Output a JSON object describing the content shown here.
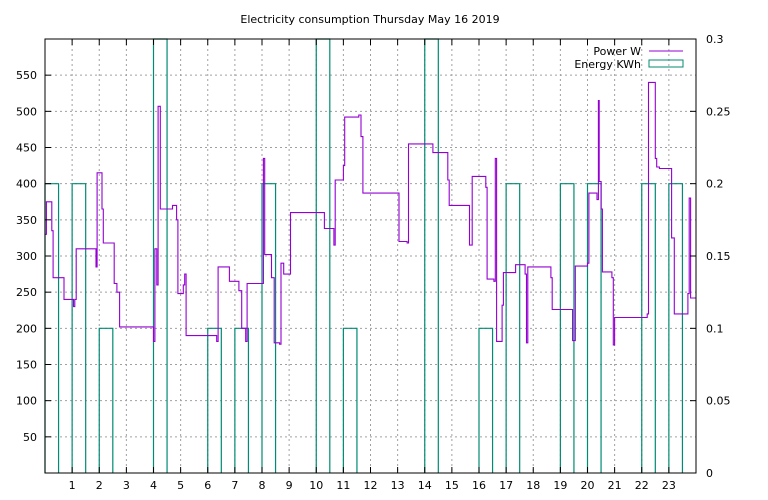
{
  "chart_data": {
    "type": "line",
    "title": "Electricity consumption Thursday May 16 2019",
    "xlabel": "",
    "ylabel": "",
    "x_ticks": [
      "1",
      "2",
      "3",
      "4",
      "5",
      "6",
      "7",
      "8",
      "9",
      "10",
      "11",
      "12",
      "13",
      "14",
      "15",
      "16",
      "17",
      "18",
      "19",
      "20",
      "21",
      "22",
      "23"
    ],
    "xlim": [
      0,
      24
    ],
    "y_ticks": [
      50,
      100,
      150,
      200,
      250,
      300,
      350,
      400,
      450,
      500,
      550
    ],
    "ylim": [
      0,
      600
    ],
    "y2_ticks": [
      "0",
      "0.05",
      "0.1",
      "0.15",
      "0.2",
      "0.25",
      "0.3"
    ],
    "y2lim": [
      0,
      0.3
    ],
    "grid": true,
    "legend_position": "top-right",
    "series": [
      {
        "name": "Power W",
        "axis": "left",
        "style": "steps",
        "color": "#9400d3",
        "points": [
          [
            0.0,
            330
          ],
          [
            0.05,
            375
          ],
          [
            0.25,
            335
          ],
          [
            0.3,
            270
          ],
          [
            0.65,
            270
          ],
          [
            0.7,
            240
          ],
          [
            1.0,
            240
          ],
          [
            1.05,
            230
          ],
          [
            1.1,
            240
          ],
          [
            1.15,
            310
          ],
          [
            1.85,
            310
          ],
          [
            1.88,
            285
          ],
          [
            1.92,
            415
          ],
          [
            2.1,
            365
          ],
          [
            2.15,
            318
          ],
          [
            2.5,
            318
          ],
          [
            2.55,
            262
          ],
          [
            2.65,
            250
          ],
          [
            2.75,
            202
          ],
          [
            3.95,
            202
          ],
          [
            4.0,
            182
          ],
          [
            4.05,
            310
          ],
          [
            4.12,
            260
          ],
          [
            4.17,
            507
          ],
          [
            4.25,
            365
          ],
          [
            4.7,
            370
          ],
          [
            4.85,
            350
          ],
          [
            4.9,
            248
          ],
          [
            5.1,
            260
          ],
          [
            5.15,
            275
          ],
          [
            5.2,
            190
          ],
          [
            6.3,
            190
          ],
          [
            6.33,
            182
          ],
          [
            6.38,
            285
          ],
          [
            6.75,
            285
          ],
          [
            6.8,
            265
          ],
          [
            7.1,
            265
          ],
          [
            7.15,
            252
          ],
          [
            7.25,
            200
          ],
          [
            7.4,
            182
          ],
          [
            7.45,
            262
          ],
          [
            8.0,
            262
          ],
          [
            8.05,
            435
          ],
          [
            8.1,
            302
          ],
          [
            8.35,
            270
          ],
          [
            8.45,
            180
          ],
          [
            8.65,
            178
          ],
          [
            8.7,
            290
          ],
          [
            8.8,
            275
          ],
          [
            9.0,
            275
          ],
          [
            9.05,
            360
          ],
          [
            10.25,
            360
          ],
          [
            10.3,
            338
          ],
          [
            10.6,
            338
          ],
          [
            10.65,
            315
          ],
          [
            10.7,
            405
          ],
          [
            10.95,
            405
          ],
          [
            11.0,
            425
          ],
          [
            11.05,
            492
          ],
          [
            11.52,
            492
          ],
          [
            11.57,
            495
          ],
          [
            11.65,
            465
          ],
          [
            11.72,
            387
          ],
          [
            13.0,
            387
          ],
          [
            13.05,
            320
          ],
          [
            13.35,
            318
          ],
          [
            13.4,
            455
          ],
          [
            14.25,
            455
          ],
          [
            14.3,
            443
          ],
          [
            14.8,
            443
          ],
          [
            14.85,
            405
          ],
          [
            14.9,
            370
          ],
          [
            15.6,
            370
          ],
          [
            15.65,
            315
          ],
          [
            15.75,
            410
          ],
          [
            16.2,
            410
          ],
          [
            16.25,
            395
          ],
          [
            16.3,
            268
          ],
          [
            16.55,
            265
          ],
          [
            16.6,
            435
          ],
          [
            16.65,
            182
          ],
          [
            16.8,
            182
          ],
          [
            16.85,
            232
          ],
          [
            16.9,
            277
          ],
          [
            17.3,
            277
          ],
          [
            17.35,
            288
          ],
          [
            17.65,
            288
          ],
          [
            17.7,
            275
          ],
          [
            17.75,
            180
          ],
          [
            17.8,
            285
          ],
          [
            18.6,
            285
          ],
          [
            18.65,
            270
          ],
          [
            18.7,
            226
          ],
          [
            19.4,
            226
          ],
          [
            19.45,
            183
          ],
          [
            19.55,
            286
          ],
          [
            19.95,
            286
          ],
          [
            20.0,
            290
          ],
          [
            20.05,
            387
          ],
          [
            20.3,
            387
          ],
          [
            20.35,
            378
          ],
          [
            20.4,
            515
          ],
          [
            20.43,
            403
          ],
          [
            20.5,
            365
          ],
          [
            20.55,
            278
          ],
          [
            20.85,
            278
          ],
          [
            20.9,
            270
          ],
          [
            20.95,
            177
          ],
          [
            21.0,
            215
          ],
          [
            22.1,
            215
          ],
          [
            22.15,
            215
          ],
          [
            22.2,
            220
          ],
          [
            22.25,
            540
          ],
          [
            22.45,
            540
          ],
          [
            22.5,
            435
          ],
          [
            22.55,
            423
          ],
          [
            22.65,
            421
          ],
          [
            23.05,
            421
          ],
          [
            23.1,
            325
          ],
          [
            23.2,
            220
          ],
          [
            23.65,
            220
          ],
          [
            23.7,
            248
          ],
          [
            23.75,
            380
          ],
          [
            23.8,
            242
          ],
          [
            24.0,
            242
          ]
        ]
      },
      {
        "name": "Energy KWh",
        "axis": "right",
        "style": "bars",
        "color": "#008b72",
        "bar_width": 0.5,
        "x": [
          0,
          1,
          2,
          3,
          4,
          5,
          6,
          7,
          8,
          9,
          10,
          11,
          12,
          13,
          14,
          15,
          16,
          17,
          18,
          19,
          20,
          21,
          22,
          23
        ],
        "values": [
          0.2,
          0.2,
          0.1,
          0,
          0.3,
          0,
          0.1,
          0.1,
          0.2,
          0,
          0.3,
          0.1,
          0,
          0,
          0.3,
          0,
          0.1,
          0.2,
          0,
          0.2,
          0.2,
          0,
          0.2,
          0.2
        ]
      }
    ]
  }
}
